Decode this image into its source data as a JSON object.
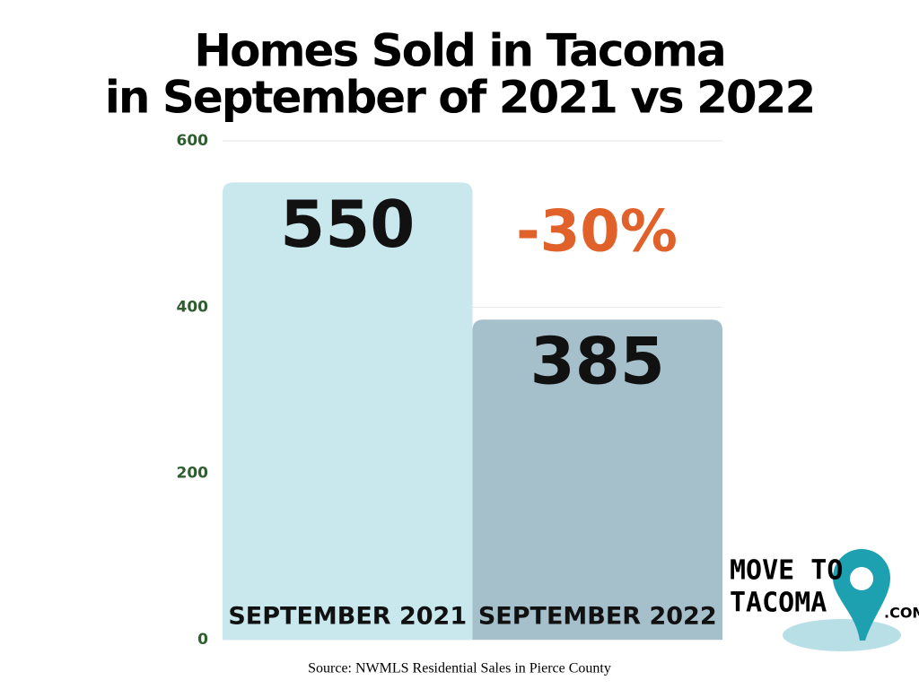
{
  "chart_data": {
    "type": "bar",
    "title": [
      "Homes Sold in Tacoma",
      "in September of 2021 vs 2022"
    ],
    "categories": [
      "SEPTEMBER 2021",
      "SEPTEMBER 2022"
    ],
    "values": [
      550,
      385
    ],
    "colors": [
      "#c8e8ee",
      "#a5bfcb"
    ],
    "ylim": [
      0,
      600
    ],
    "yticks": [
      0,
      200,
      400,
      600
    ],
    "grid": true,
    "annotation": "-30%",
    "source": "Source: NWMLS Residential Sales in Pierce County"
  },
  "logo": {
    "line1": "MOVE TO",
    "line2": "TACOMA",
    "suffix": ".COM"
  }
}
